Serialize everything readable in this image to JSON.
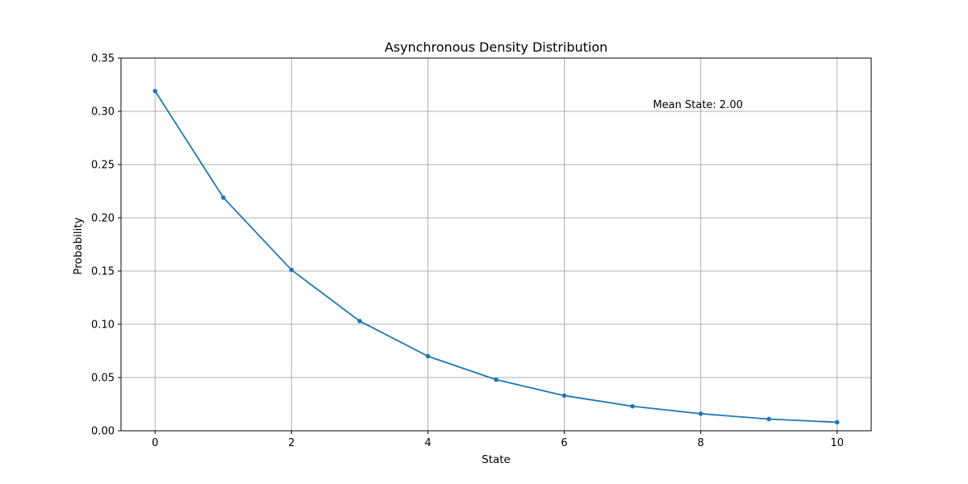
{
  "chart_data": {
    "type": "line",
    "title": "Asynchronous Density Distribution",
    "xlabel": "State",
    "ylabel": "Probability",
    "xlim": [
      -0.5,
      10.5
    ],
    "ylim": [
      0,
      0.35
    ],
    "xticks": [
      0,
      2,
      4,
      6,
      8,
      10
    ],
    "xtick_labels": [
      "0",
      "2",
      "4",
      "6",
      "8",
      "10"
    ],
    "yticks": [
      0,
      0.05,
      0.1,
      0.15,
      0.2,
      0.25,
      0.3,
      0.35
    ],
    "ytick_labels": [
      "0.00",
      "0.05",
      "0.10",
      "0.15",
      "0.20",
      "0.25",
      "0.30",
      "0.35"
    ],
    "grid": true,
    "line_color": "#1f77b4",
    "series": [
      {
        "x": [
          0,
          1,
          2,
          3,
          4,
          5,
          6,
          7,
          8,
          9,
          10
        ],
        "values": [
          0.319,
          0.219,
          0.151,
          0.103,
          0.07,
          0.048,
          0.033,
          0.023,
          0.016,
          0.011,
          0.008
        ]
      }
    ],
    "annotations": [
      {
        "text": "Mean State: 2.00",
        "x": 7.3,
        "y": 0.303
      }
    ]
  }
}
